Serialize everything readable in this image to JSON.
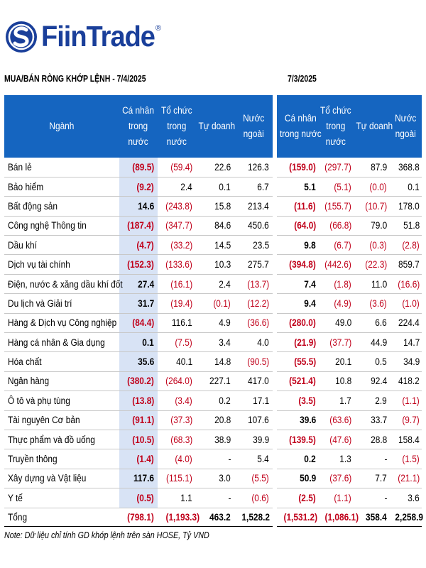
{
  "brand": {
    "name": "FiinTrade",
    "reg": "®",
    "color": "#1a3f9a",
    "icon": "fiintrade-s-logo-icon"
  },
  "left_title": "MUA/BÁN RÒNG KHỚP LỆNH - 7/4/2025",
  "right_title": "7/3/2025",
  "headers": {
    "sector": "Ngành",
    "individual": [
      "Cá nhân",
      "trong",
      "nước"
    ],
    "institution": [
      "Tổ chức",
      "trong",
      "nước"
    ],
    "proprietary": [
      "Tự doanh"
    ],
    "foreign": [
      "Nước",
      "ngoài"
    ],
    "r_individual": [
      "Cá nhân",
      "trong nước"
    ],
    "r_institution": [
      "Tổ chức",
      "trong",
      "nước"
    ],
    "r_proprietary": [
      "Tự doanh"
    ],
    "r_foreign": [
      "Nước",
      "ngoài"
    ]
  },
  "rows": [
    {
      "sector": "Bán lẻ",
      "l": [
        "(89.5)",
        "(59.4)",
        "22.6",
        "126.3"
      ],
      "r": [
        "(159.0)",
        "(297.7)",
        "87.9",
        "368.8"
      ]
    },
    {
      "sector": "Bảo hiểm",
      "l": [
        "(9.2)",
        "2.4",
        "0.1",
        "6.7"
      ],
      "r": [
        "5.1",
        "(5.1)",
        "(0.0)",
        "0.1"
      ]
    },
    {
      "sector": "Bất động sản",
      "l": [
        "14.6",
        "(243.8)",
        "15.8",
        "213.4"
      ],
      "r": [
        "(11.6)",
        "(155.7)",
        "(10.7)",
        "178.0"
      ]
    },
    {
      "sector": "Công nghệ Thông tin",
      "l": [
        "(187.4)",
        "(347.7)",
        "84.6",
        "450.6"
      ],
      "r": [
        "(64.0)",
        "(66.8)",
        "79.0",
        "51.8"
      ]
    },
    {
      "sector": "Dầu khí",
      "l": [
        "(4.7)",
        "(33.2)",
        "14.5",
        "23.5"
      ],
      "r": [
        "9.8",
        "(6.7)",
        "(0.3)",
        "(2.8)"
      ]
    },
    {
      "sector": "Dịch vụ tài chính",
      "l": [
        "(152.3)",
        "(133.6)",
        "10.3",
        "275.7"
      ],
      "r": [
        "(394.8)",
        "(442.6)",
        "(22.3)",
        "859.7"
      ]
    },
    {
      "sector": "Điện, nước & xăng dầu khí đốt",
      "l": [
        "27.4",
        "(16.1)",
        "2.4",
        "(13.7)"
      ],
      "r": [
        "7.4",
        "(1.8)",
        "11.0",
        "(16.6)"
      ]
    },
    {
      "sector": "Du lịch và Giải trí",
      "l": [
        "31.7",
        "(19.4)",
        "(0.1)",
        "(12.2)"
      ],
      "r": [
        "9.4",
        "(4.9)",
        "(3.6)",
        "(1.0)"
      ]
    },
    {
      "sector": "Hàng & Dịch vụ Công nghiệp",
      "l": [
        "(84.4)",
        "116.1",
        "4.9",
        "(36.6)"
      ],
      "r": [
        "(280.0)",
        "49.0",
        "6.6",
        "224.4"
      ]
    },
    {
      "sector": "Hàng cá nhân & Gia dụng",
      "l": [
        "0.1",
        "(7.5)",
        "3.4",
        "4.0"
      ],
      "r": [
        "(21.9)",
        "(37.7)",
        "44.9",
        "14.7"
      ]
    },
    {
      "sector": "Hóa chất",
      "l": [
        "35.6",
        "40.1",
        "14.8",
        "(90.5)"
      ],
      "r": [
        "(55.5)",
        "20.1",
        "0.5",
        "34.9"
      ]
    },
    {
      "sector": "Ngân hàng",
      "l": [
        "(380.2)",
        "(264.0)",
        "227.1",
        "417.0"
      ],
      "r": [
        "(521.4)",
        "10.8",
        "92.4",
        "418.2"
      ]
    },
    {
      "sector": "Ô tô và phụ tùng",
      "l": [
        "(13.8)",
        "(3.4)",
        "0.2",
        "17.1"
      ],
      "r": [
        "(3.5)",
        "1.7",
        "2.9",
        "(1.1)"
      ]
    },
    {
      "sector": "Tài nguyên Cơ bản",
      "l": [
        "(91.1)",
        "(37.3)",
        "20.8",
        "107.6"
      ],
      "r": [
        "39.6",
        "(63.6)",
        "33.7",
        "(9.7)"
      ]
    },
    {
      "sector": "Thực phẩm và đồ uống",
      "l": [
        "(10.5)",
        "(68.3)",
        "38.9",
        "39.9"
      ],
      "r": [
        "(139.5)",
        "(47.6)",
        "28.8",
        "158.4"
      ]
    },
    {
      "sector": "Truyền thông",
      "l": [
        "(1.4)",
        "(4.0)",
        "-",
        "5.4"
      ],
      "r": [
        "0.2",
        "1.3",
        "-",
        "(1.5)"
      ]
    },
    {
      "sector": "Xây dựng và Vật liệu",
      "l": [
        "117.6",
        "(115.1)",
        "3.0",
        "(5.5)"
      ],
      "r": [
        "50.9",
        "(37.6)",
        "7.7",
        "(21.1)"
      ]
    },
    {
      "sector": "Y tế",
      "l": [
        "(0.5)",
        "1.1",
        "-",
        "(0.6)"
      ],
      "r": [
        "(2.5)",
        "(1.1)",
        "-",
        "3.6"
      ]
    }
  ],
  "total": {
    "label": "Tổng",
    "l": [
      "(798.1)",
      "(1,193.3)",
      "463.2",
      "1,528.2"
    ],
    "r": [
      "(1,531.2)",
      "(1,086.1)",
      "358.4",
      "2,258.9"
    ]
  },
  "note": "Note: Dữ liệu chỉ tính GD khớp lệnh trên sàn HOSE, Tỷ VND",
  "colors": {
    "header_bg": "#1565c0",
    "negative": "#c0001a",
    "highlight": "#d8e3f5"
  }
}
